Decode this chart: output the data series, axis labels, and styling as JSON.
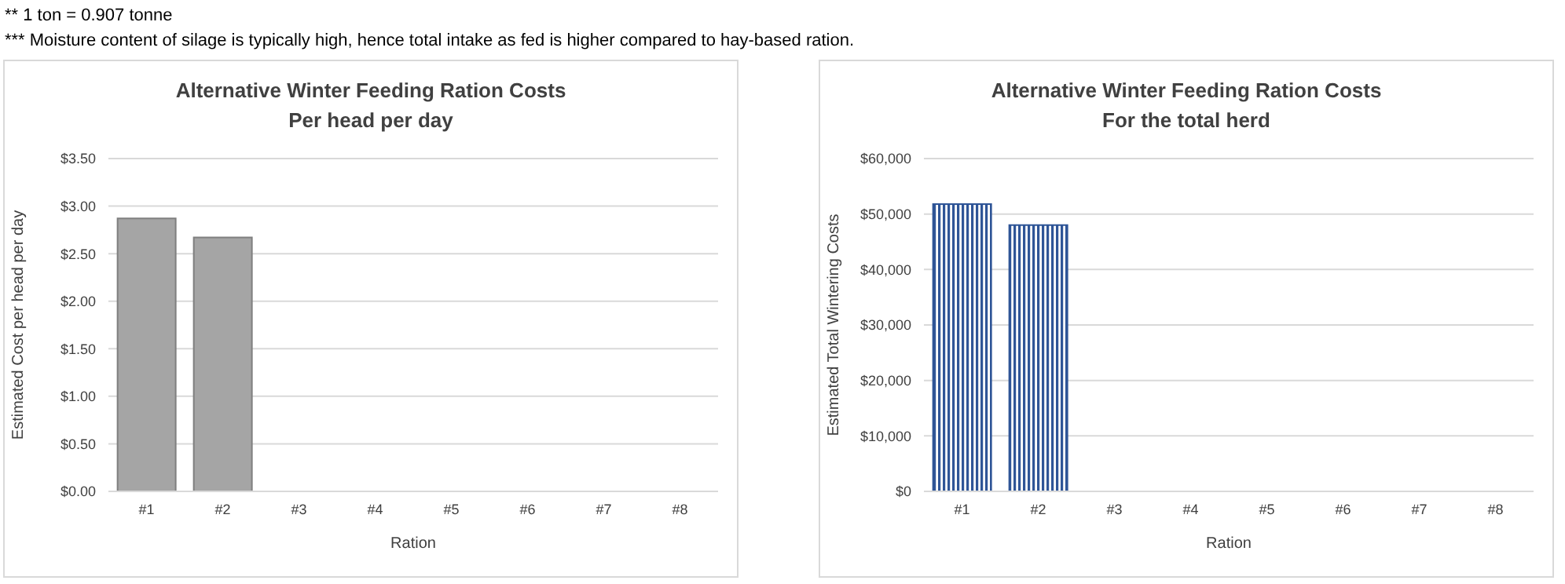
{
  "chart_data": [
    {
      "type": "bar",
      "title": "Alternative Winter Feeding Ration Costs",
      "subtitle": "Per head per day",
      "xlabel": "Ration",
      "ylabel": "Estimated Cost per head per day",
      "annotations": [
        "** 1 ton = 0.907 tonne",
        "*** Moisture content of silage is typically high, hence total intake as fed is higher compared to hay-based ration."
      ],
      "categories": [
        "#1",
        "#2",
        "#3",
        "#4",
        "#5",
        "#6",
        "#7",
        "#8"
      ],
      "values": [
        2.87,
        2.67,
        null,
        null,
        null,
        null,
        null,
        null
      ],
      "color": "#a5a5a5",
      "ylim": [
        0,
        3.5
      ],
      "yticks": [
        {
          "value": 0,
          "label": "$0.00"
        },
        {
          "value": 0.5,
          "label": "$0.50"
        },
        {
          "value": 1,
          "label": "$1.00"
        },
        {
          "value": 1.5,
          "label": "$1.50"
        },
        {
          "value": 2,
          "label": "$2.00"
        },
        {
          "value": 2.5,
          "label": "$2.50"
        },
        {
          "value": 3,
          "label": "$3.00"
        },
        {
          "value": 3.5,
          "label": "$3.50"
        }
      ],
      "grid": "y"
    },
    {
      "type": "bar",
      "title": "Alternative Winter Feeding Ration Costs",
      "subtitle": "For the total herd",
      "xlabel": "Ration",
      "ylabel": "Estimated Total Wintering Costs",
      "categories": [
        "#1",
        "#2",
        "#3",
        "#4",
        "#5",
        "#6",
        "#7",
        "#8"
      ],
      "values": [
        51800,
        48000,
        null,
        null,
        null,
        null,
        null,
        null
      ],
      "color": "#2f5597",
      "ylim": [
        0,
        60000
      ],
      "yticks": [
        {
          "value": 0,
          "label": "$0"
        },
        {
          "value": 10000,
          "label": "$10,000"
        },
        {
          "value": 20000,
          "label": "$20,000"
        },
        {
          "value": 30000,
          "label": "$30,000"
        },
        {
          "value": 40000,
          "label": "$40,000"
        },
        {
          "value": 50000,
          "label": "$50,000"
        },
        {
          "value": 60000,
          "label": "$60,000"
        }
      ],
      "grid": "y"
    }
  ]
}
